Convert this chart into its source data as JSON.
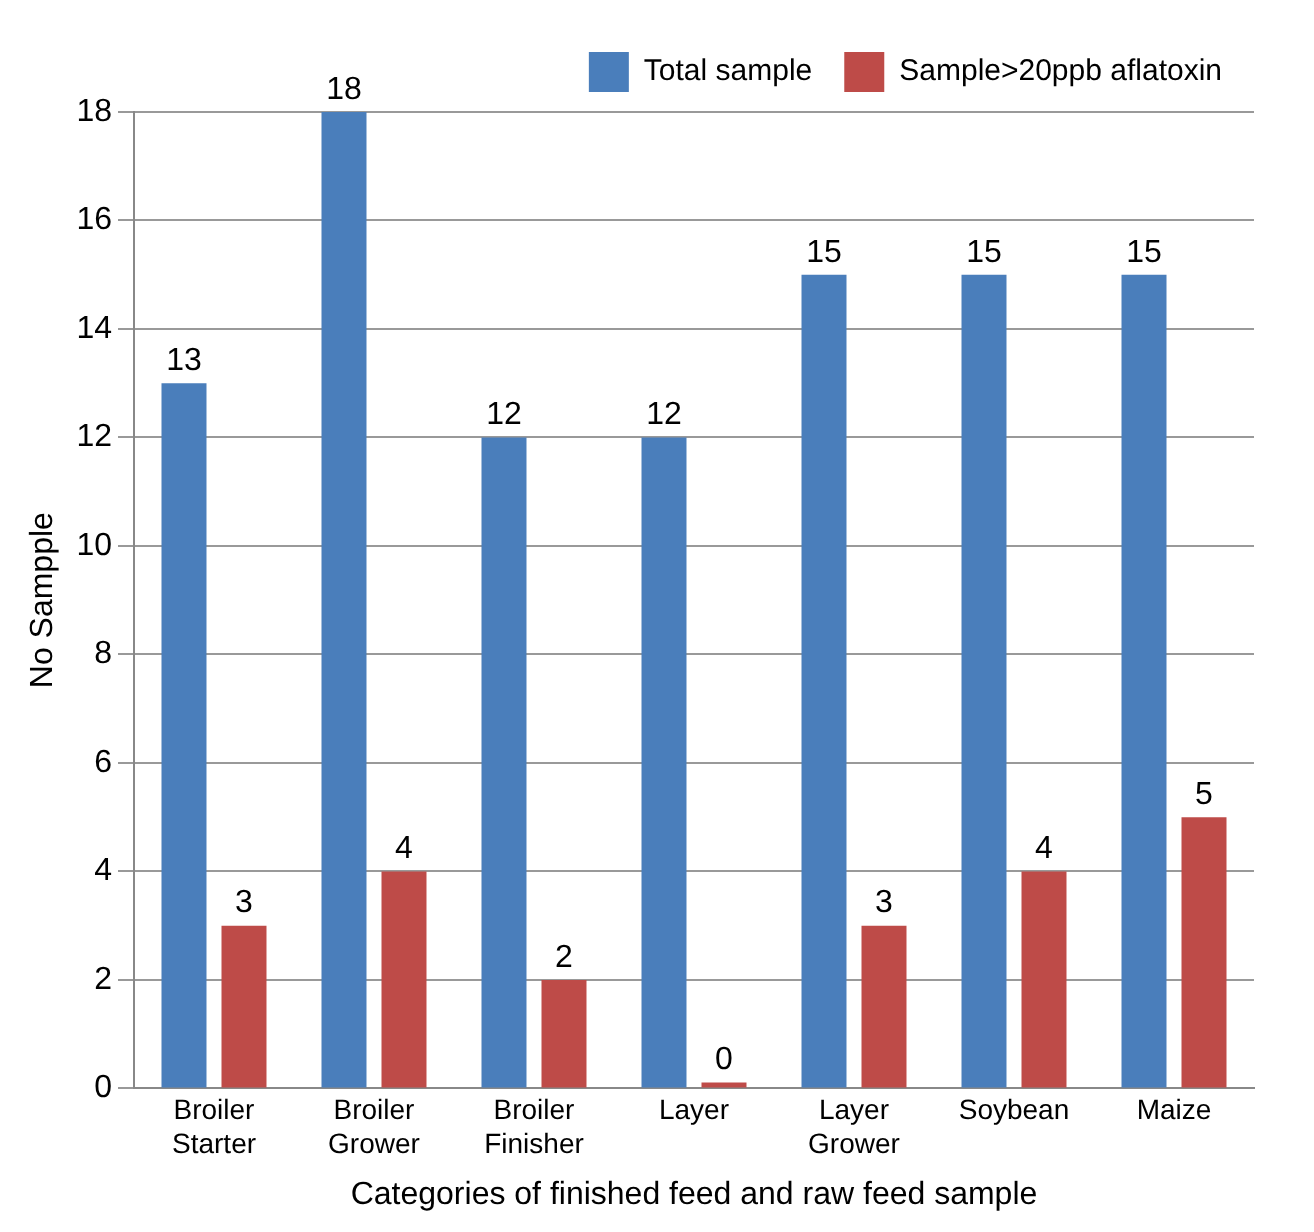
{
  "chart_data": {
    "type": "bar",
    "xlabel": "Categories of finished feed and raw feed sample",
    "ylabel": "No Sampple",
    "categories": [
      "Broiler Starter",
      "Broiler Grower",
      "Broiler Finisher",
      "Layer",
      "Layer Grower",
      "Soybean",
      "Maize"
    ],
    "series": [
      {
        "name": "Total sample",
        "color": "#4a7ebb",
        "values": [
          13,
          18,
          12,
          12,
          15,
          15,
          15
        ]
      },
      {
        "name": "Sample>20ppb aflatoxin",
        "color": "#be4b48",
        "values": [
          3,
          4,
          2,
          0,
          3,
          4,
          5
        ]
      }
    ],
    "ylim": [
      0,
      18
    ],
    "yticks": [
      0,
      2,
      4,
      6,
      8,
      10,
      12,
      14,
      16,
      18
    ],
    "grid": "y",
    "legend": "top right",
    "data_labels": true
  }
}
